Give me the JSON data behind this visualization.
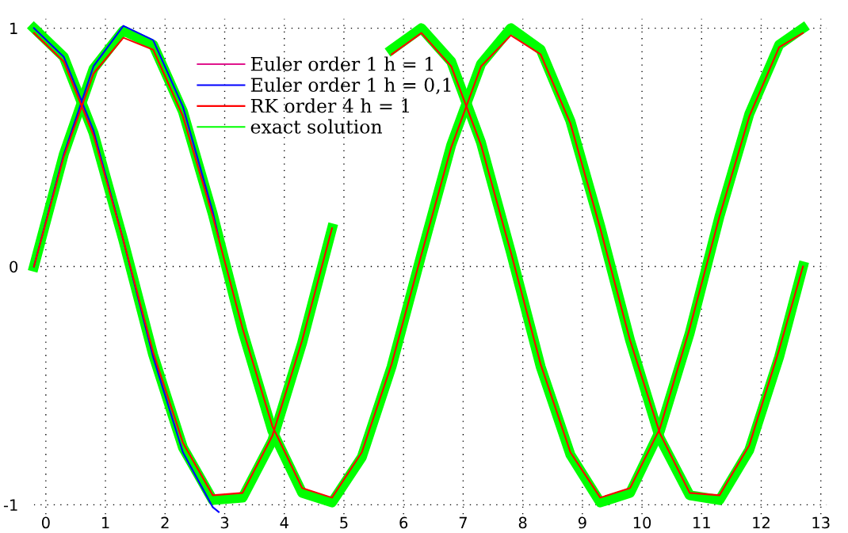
{
  "chart_data": {
    "type": "line",
    "xlim": [
      -0.2,
      13.1
    ],
    "ylim": [
      -1.04,
      1.04
    ],
    "xticks": [
      0,
      1,
      2,
      3,
      4,
      5,
      6,
      7,
      8,
      9,
      10,
      11,
      12,
      13
    ],
    "yticks": [
      {
        "value": -1,
        "label": "-1"
      },
      0,
      1
    ],
    "grid": true,
    "line_style": "solid",
    "legend": "top",
    "series": [
      {
        "name": "Euler order 1 h = 1",
        "color": "#e0158c"
      },
      {
        "name": "Euler order 1 h = 0,1",
        "color": "#0000ff",
        "x": [
          -0.2,
          0.3,
          0.8,
          1.3,
          1.8,
          2.3,
          2.8,
          2.9
        ],
        "values": [
          0,
          0.47,
          0.84,
          1.01,
          0.95,
          0.67,
          0.23,
          0.12
        ]
      },
      {
        "name": null,
        "color": "#0000ff",
        "x": [
          -0.2,
          0.3,
          0.8,
          1.3,
          1.8,
          2.3,
          2.8,
          2.9
        ],
        "values": [
          1,
          0.88,
          0.57,
          0.11,
          -0.38,
          -0.78,
          -1.01,
          -1.03
        ]
      },
      {
        "name": "RK order 4 h = 1",
        "color": "#ff0000",
        "x": [
          -0.2,
          0.3,
          0.8,
          1.3,
          1.8,
          2.3,
          2.8,
          3.3,
          3.8,
          4.3,
          4.8,
          5.3,
          5.8,
          6.3,
          6.8,
          7.3,
          7.8,
          8.3,
          8.8,
          9.3,
          9.8,
          10.3,
          10.8,
          11.3,
          11.8,
          12.3,
          12.7
        ],
        "values": [
          0,
          0.46,
          0.81,
          0.96,
          0.91,
          0.63,
          0.21,
          -0.26,
          -0.67,
          -0.93,
          -0.97,
          -0.78,
          -0.41,
          0.05,
          0.5,
          0.84,
          0.97,
          0.89,
          0.6,
          0.16,
          -0.31,
          -0.7,
          -0.95,
          -0.96,
          -0.75,
          -0.35,
          0
        ]
      },
      {
        "name": null,
        "color": "#ff0000",
        "x": [
          -0.2,
          0.3,
          0.8,
          1.3,
          1.8,
          2.3,
          2.8,
          3.3,
          3.8,
          4.3,
          4.8,
          5.3,
          5.8,
          6.3,
          6.8,
          7.3,
          7.8,
          8.3,
          8.8,
          9.3,
          9.8,
          10.3,
          10.8,
          11.3,
          11.8,
          12.3,
          12.7
        ],
        "values": [
          0.98,
          0.86,
          0.55,
          0.11,
          -0.36,
          -0.74,
          -0.96,
          -0.95,
          -0.71,
          -0.31,
          0.16,
          null,
          0.89,
          0.98,
          0.84,
          0.51,
          0.06,
          -0.41,
          -0.78,
          -0.97,
          -0.93,
          -0.68,
          -0.26,
          0.21,
          0.63,
          0.92,
          0.98
        ]
      },
      {
        "name": "exact solution",
        "color": "#00ff00",
        "x": [
          -0.2,
          0.3,
          0.8,
          1.3,
          1.8,
          2.3,
          2.8,
          3.3,
          3.8,
          4.3,
          4.8,
          5.3,
          5.8,
          6.3,
          6.8,
          7.3,
          7.8,
          8.3,
          8.8,
          9.3,
          9.8,
          10.3,
          10.8,
          11.3,
          11.8,
          12.3,
          12.7
        ],
        "values": [
          0,
          0.47,
          0.83,
          0.99,
          0.93,
          0.65,
          0.22,
          -0.27,
          -0.69,
          -0.95,
          -0.99,
          -0.8,
          -0.42,
          0.05,
          0.51,
          0.85,
          1.0,
          0.91,
          0.61,
          0.17,
          -0.31,
          -0.72,
          -0.96,
          -0.98,
          -0.77,
          -0.38,
          0
        ]
      },
      {
        "name": null,
        "color": "#00ff00",
        "x": [
          -0.2,
          0.3,
          0.8,
          1.3,
          1.8,
          2.3,
          2.8,
          3.3,
          3.8,
          4.3,
          4.8,
          5.3,
          5.8,
          6.3,
          6.8,
          7.3,
          7.8,
          8.3,
          8.8,
          9.3,
          9.8,
          10.3,
          10.8,
          11.3,
          11.8,
          12.3,
          12.7
        ],
        "values": [
          1,
          0.88,
          0.56,
          0.11,
          -0.37,
          -0.76,
          -0.98,
          -0.97,
          -0.73,
          -0.32,
          0.16,
          null,
          0.91,
          1.0,
          0.86,
          0.52,
          0.06,
          -0.42,
          -0.79,
          -0.99,
          -0.95,
          -0.69,
          -0.28,
          0.21,
          0.64,
          0.93,
          1.0
        ]
      }
    ]
  }
}
